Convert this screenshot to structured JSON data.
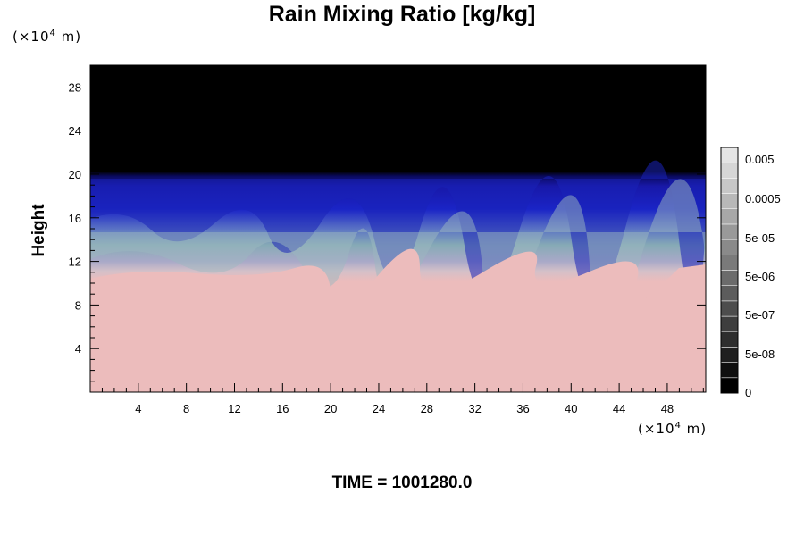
{
  "chart_data": {
    "type": "heatmap",
    "title": "Rain Mixing Ratio [kg/kg]",
    "xlabel": "",
    "ylabel": "Height",
    "x_unit": {
      "prefix": "(×10",
      "exp": "4",
      "suffix": " m)"
    },
    "y_unit": {
      "prefix": "(×10",
      "exp": "4",
      "suffix": " m)"
    },
    "xlim": [
      0,
      51.2
    ],
    "ylim": [
      0,
      30
    ],
    "x_ticks": [
      4,
      8,
      12,
      16,
      20,
      24,
      28,
      32,
      36,
      40,
      44,
      48
    ],
    "y_ticks": [
      4,
      8,
      12,
      16,
      20,
      24,
      28
    ],
    "colorbar": {
      "labels": [
        "0.005",
        "0.0005",
        "5e-05",
        "5e-06",
        "5e-07",
        "5e-08",
        "0"
      ],
      "colors": [
        "#000000",
        "#0f0f0f",
        "#1f1f1f",
        "#2e2e2e",
        "#3e3e3e",
        "#4d4d4d",
        "#5c5c5c",
        "#6b6b6b",
        "#7a7a7a",
        "#8a8a8a",
        "#999999",
        "#a8a8a8",
        "#b8b8b8",
        "#c7c7c7",
        "#d6d6d6",
        "#e5e5e5"
      ]
    },
    "field_layers": [
      {
        "name": "upper",
        "top_height": 30,
        "bottom_height": 19.8,
        "color": "#000000"
      },
      {
        "name": "blue band",
        "top_height": 19.8,
        "bottom_height": 14.5,
        "color": "#1a1fc0"
      },
      {
        "name": "teal band",
        "top_height": 15.2,
        "bottom_height": 11.5,
        "color": "#86a8b4"
      },
      {
        "name": "lower",
        "top_height": 11.5,
        "bottom_height": 0,
        "color": "#ecbcbc"
      }
    ]
  },
  "footer": {
    "time_label": "TIME = 1001280.0"
  }
}
